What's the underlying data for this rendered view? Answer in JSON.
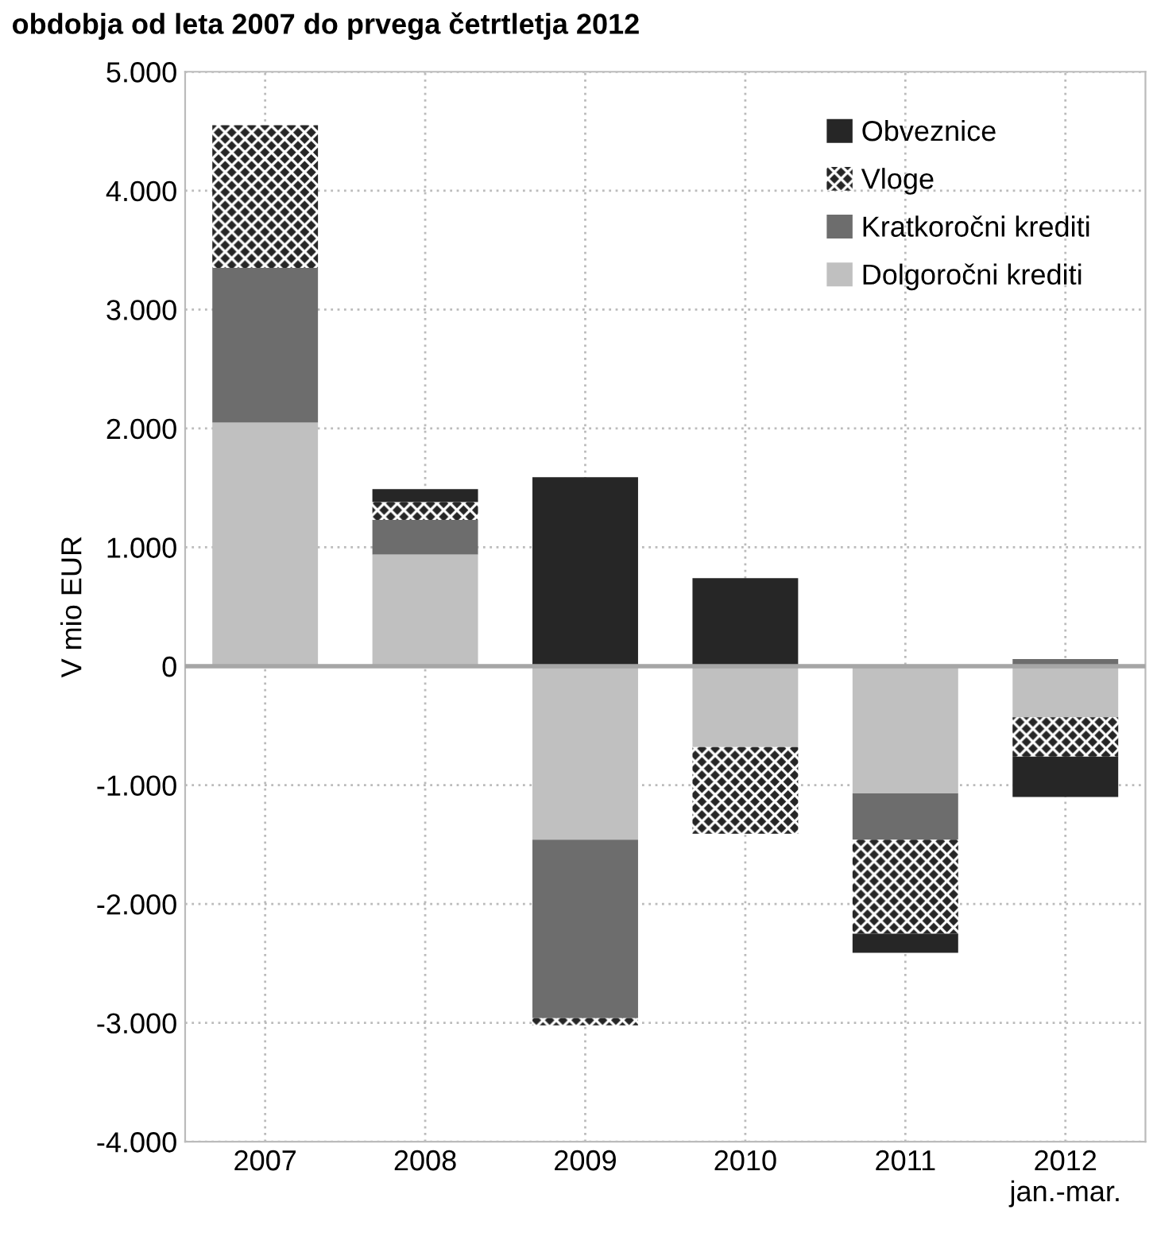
{
  "chart_data": {
    "type": "bar",
    "title": "obdobja od leta 2007 do prvega četrtletja 2012",
    "ylabel": "V mio EUR",
    "categories": [
      "2007",
      "2008",
      "2009",
      "2010",
      "2011",
      "2012\njan.-mar."
    ],
    "stacked": true,
    "series": [
      {
        "name": "Dolgoročni krediti",
        "color": "#c0c0c0",
        "values": [
          2050,
          940,
          -1460,
          -680,
          -1070,
          -430
        ]
      },
      {
        "name": "Kratkoročni krediti",
        "color": "#6d6d6d",
        "values": [
          1300,
          290,
          -1500,
          0,
          -390,
          60
        ]
      },
      {
        "name": "Vloge",
        "color": "#262626",
        "values": [
          1200,
          150,
          -60,
          -730,
          -790,
          -330
        ]
      },
      {
        "name": "Obveznice",
        "color": "#262626",
        "values": [
          0,
          110,
          1590,
          740,
          -160,
          -340
        ]
      }
    ],
    "ylim": [
      -4000,
      5000
    ],
    "yticks": [
      {
        "value": -4000,
        "label": "-4.000"
      },
      {
        "value": -3000,
        "label": "-3.000"
      },
      {
        "value": -2000,
        "label": "-2.000"
      },
      {
        "value": -1000,
        "label": "-1.000"
      },
      0,
      {
        "value": 1000,
        "label": "1.000"
      },
      {
        "value": 2000,
        "label": "2.000"
      },
      {
        "value": 3000,
        "label": "3.000"
      },
      {
        "value": 4000,
        "label": "4.000"
      },
      {
        "value": 5000,
        "label": "5.000"
      }
    ],
    "ref_lines": [
      {
        "axis": "y",
        "value": 0,
        "color": "#a6a6a6"
      }
    ],
    "grid": true,
    "legend": "top right"
  }
}
